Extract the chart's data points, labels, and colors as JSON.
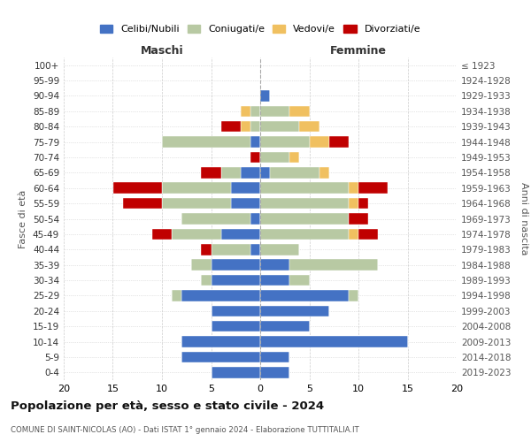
{
  "age_groups": [
    "100+",
    "95-99",
    "90-94",
    "85-89",
    "80-84",
    "75-79",
    "70-74",
    "65-69",
    "60-64",
    "55-59",
    "50-54",
    "45-49",
    "40-44",
    "35-39",
    "30-34",
    "25-29",
    "20-24",
    "15-19",
    "10-14",
    "5-9",
    "0-4"
  ],
  "birth_years": [
    "≤ 1923",
    "1924-1928",
    "1929-1933",
    "1934-1938",
    "1939-1943",
    "1944-1948",
    "1949-1953",
    "1954-1958",
    "1959-1963",
    "1964-1968",
    "1969-1973",
    "1974-1978",
    "1979-1983",
    "1984-1988",
    "1989-1993",
    "1994-1998",
    "1999-2003",
    "2004-2008",
    "2009-2013",
    "2014-2018",
    "2019-2023"
  ],
  "males": {
    "celibi": [
      0,
      0,
      0,
      0,
      0,
      1,
      0,
      2,
      3,
      3,
      1,
      4,
      1,
      5,
      5,
      8,
      5,
      5,
      8,
      8,
      5
    ],
    "coniugati": [
      0,
      0,
      0,
      1,
      1,
      9,
      0,
      2,
      7,
      7,
      7,
      5,
      4,
      2,
      1,
      1,
      0,
      0,
      0,
      0,
      0
    ],
    "vedovi": [
      0,
      0,
      0,
      1,
      1,
      0,
      0,
      0,
      0,
      0,
      0,
      0,
      0,
      0,
      0,
      0,
      0,
      0,
      0,
      0,
      0
    ],
    "divorziati": [
      0,
      0,
      0,
      0,
      2,
      0,
      1,
      2,
      5,
      4,
      0,
      2,
      1,
      0,
      0,
      0,
      0,
      0,
      0,
      0,
      0
    ]
  },
  "females": {
    "nubili": [
      0,
      0,
      1,
      0,
      0,
      0,
      0,
      1,
      0,
      0,
      0,
      0,
      0,
      3,
      3,
      9,
      7,
      5,
      15,
      3,
      3
    ],
    "coniugate": [
      0,
      0,
      0,
      3,
      4,
      5,
      3,
      5,
      9,
      9,
      9,
      9,
      4,
      9,
      2,
      1,
      0,
      0,
      0,
      0,
      0
    ],
    "vedove": [
      0,
      0,
      0,
      2,
      2,
      2,
      1,
      1,
      1,
      1,
      0,
      1,
      0,
      0,
      0,
      0,
      0,
      0,
      0,
      0,
      0
    ],
    "divorziate": [
      0,
      0,
      0,
      0,
      0,
      2,
      0,
      0,
      3,
      1,
      2,
      2,
      0,
      0,
      0,
      0,
      0,
      0,
      0,
      0,
      0
    ]
  },
  "colors": {
    "celibi_nubili": "#4472c4",
    "coniugati": "#b8c9a3",
    "vedovi": "#f0c060",
    "divorziati": "#c00000"
  },
  "xlim": 20,
  "title": "Popolazione per età, sesso e stato civile - 2024",
  "subtitle": "COMUNE DI SAINT-NICOLAS (AO) - Dati ISTAT 1° gennaio 2024 - Elaborazione TUTTITALIA.IT",
  "ylabel_left": "Fasce di età",
  "ylabel_right": "Anni di nascita",
  "xlabel_left": "Maschi",
  "xlabel_right": "Femmine",
  "bg_color": "#ffffff",
  "grid_color": "#cccccc"
}
